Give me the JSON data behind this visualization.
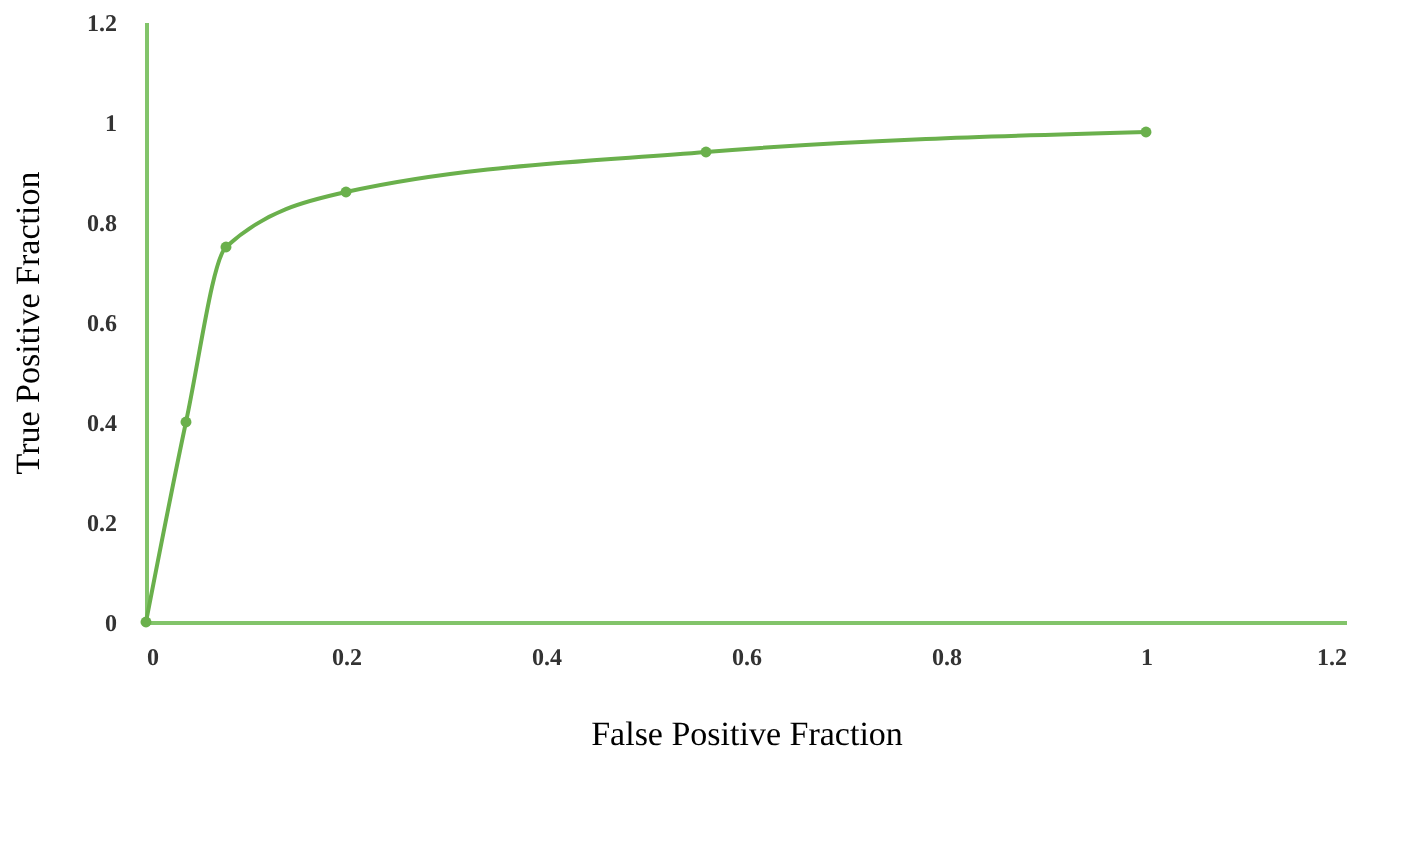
{
  "chart_data": {
    "type": "line",
    "xlabel": "False Positive Fraction",
    "ylabel": "True Positive Fraction",
    "x": [
      0,
      0.04,
      0.08,
      0.2,
      0.56,
      1.0
    ],
    "series": [
      {
        "color": "#6ab04c",
        "values": [
          0,
          0.4,
          0.75,
          0.86,
          0.94,
          0.98
        ]
      }
    ],
    "xlim": [
      0,
      1.2
    ],
    "ylim": [
      0,
      1.2
    ],
    "xticks": [
      0,
      0.2,
      0.4,
      0.6,
      0.8,
      1,
      1.2
    ],
    "yticks": [
      0,
      0.2,
      0.4,
      0.6,
      0.8,
      1,
      1.2
    ],
    "grid": false,
    "marker": "circle",
    "line_style": "solid"
  }
}
